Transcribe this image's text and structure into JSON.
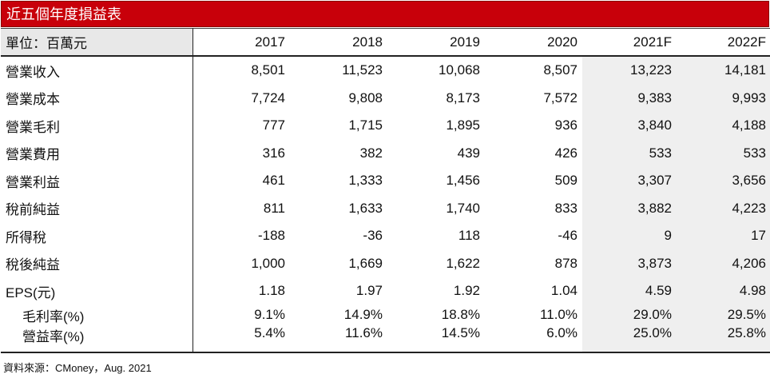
{
  "title": "近五個年度損益表",
  "header": {
    "unit_label": "單位：百萬元",
    "years": [
      "2017",
      "2018",
      "2019",
      "2020",
      "2021F",
      "2022F"
    ]
  },
  "rows": [
    {
      "label": "營業收入",
      "values": [
        "8,501",
        "11,523",
        "10,068",
        "8,507",
        "13,223",
        "14,181"
      ]
    },
    {
      "label": "營業成本",
      "values": [
        "7,724",
        "9,808",
        "8,173",
        "7,572",
        "9,383",
        "9,993"
      ]
    },
    {
      "label": "營業毛利",
      "values": [
        "777",
        "1,715",
        "1,895",
        "936",
        "3,840",
        "4,188"
      ]
    },
    {
      "label": "營業費用",
      "values": [
        "316",
        "382",
        "439",
        "426",
        "533",
        "533"
      ]
    },
    {
      "label": "營業利益",
      "values": [
        "461",
        "1,333",
        "1,456",
        "509",
        "3,307",
        "3,656"
      ]
    },
    {
      "label": "稅前純益",
      "values": [
        "811",
        "1,633",
        "1,740",
        "833",
        "3,882",
        "4,223"
      ]
    },
    {
      "label": "所得稅",
      "values": [
        "-188",
        "-36",
        "118",
        "-46",
        "9",
        "17"
      ]
    },
    {
      "label": "稅後純益",
      "values": [
        "1,000",
        "1,669",
        "1,622",
        "878",
        "3,873",
        "4,206"
      ]
    },
    {
      "label": "EPS(元)",
      "values": [
        "1.18",
        "1.97",
        "1.92",
        "1.04",
        "4.59",
        "4.98"
      ]
    }
  ],
  "ratio_rows": [
    {
      "label": "毛利率(%)",
      "values": [
        "9.1%",
        "14.9%",
        "18.8%",
        "11.0%",
        "29.0%",
        "29.5%"
      ]
    },
    {
      "label": "營益率(%)",
      "values": [
        "5.4%",
        "11.6%",
        "14.5%",
        "6.0%",
        "25.0%",
        "25.8%"
      ]
    }
  ],
  "source": "資料來源：CMoney，Aug. 2021",
  "colors": {
    "title_bg": "#c8000a",
    "forecast_bg": "#efefef",
    "unit_header_bg": "#e8e8e8"
  }
}
